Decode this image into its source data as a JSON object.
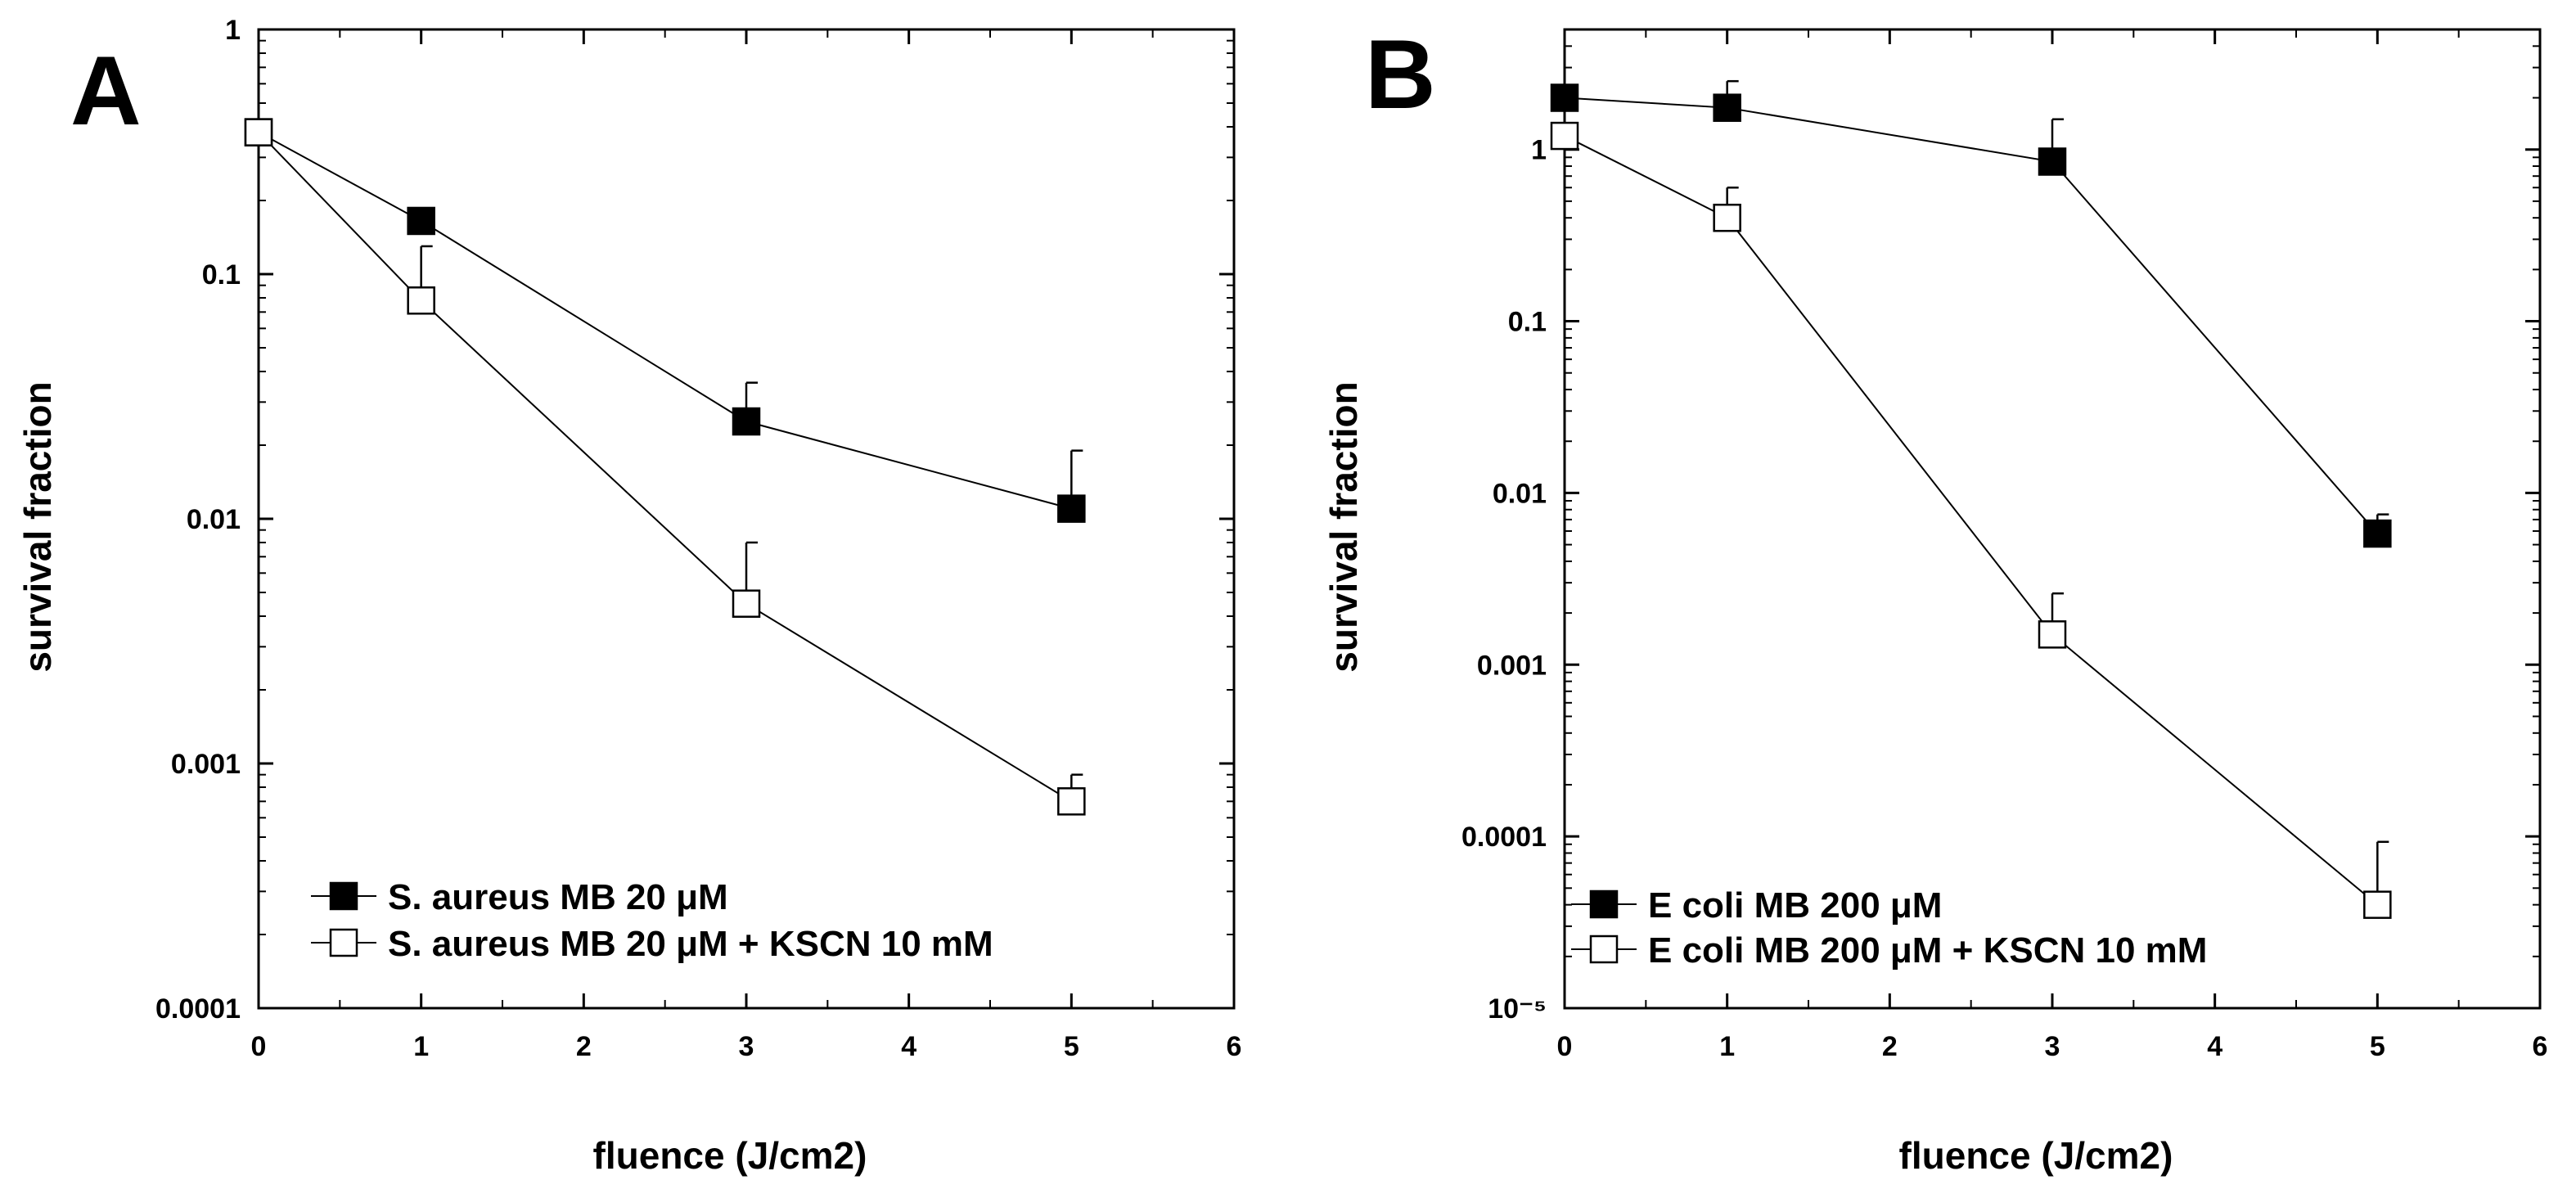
{
  "chart_data": [
    {
      "type": "line",
      "panel_label": "A",
      "xlabel": "fluence (J/cm2)",
      "ylabel": "survival fraction",
      "y_scale": "log",
      "xlim": [
        0,
        6
      ],
      "ylim": [
        0.0001,
        1
      ],
      "x_ticks": [
        0,
        1,
        2,
        3,
        4,
        5,
        6
      ],
      "x_tick_labels": [
        "0",
        "1",
        "2",
        "3",
        "4",
        "5",
        "6"
      ],
      "y_ticks": [
        0.0001,
        0.001,
        0.01,
        0.1,
        1
      ],
      "y_tick_labels": [
        "0.0001",
        "0.001",
        "0.01",
        "0.1",
        "1"
      ],
      "legend_position": "bottom-left",
      "series": [
        {
          "name": "S. aureus MB 20 μM",
          "marker": "filled-square",
          "x": [
            0,
            1,
            3,
            5
          ],
          "y": [
            0.38,
            0.165,
            0.025,
            0.011
          ],
          "error_upper": [
            0.38,
            0.165,
            0.036,
            0.019
          ]
        },
        {
          "name": "S. aureus MB 20 μM + KSCN 10 mM",
          "marker": "open-square",
          "x": [
            0,
            1,
            3,
            5
          ],
          "y": [
            0.38,
            0.078,
            0.0045,
            0.0007
          ],
          "error_upper": [
            0.38,
            0.13,
            0.008,
            0.0009
          ]
        }
      ]
    },
    {
      "type": "line",
      "panel_label": "B",
      "xlabel": "fluence (J/cm2)",
      "ylabel": "survival fraction",
      "y_scale": "log",
      "xlim": [
        0,
        6
      ],
      "ylim": [
        1e-05,
        5
      ],
      "x_ticks": [
        0,
        1,
        2,
        3,
        4,
        5,
        6
      ],
      "x_tick_labels": [
        "0",
        "1",
        "2",
        "3",
        "4",
        "5",
        "6"
      ],
      "y_ticks": [
        1e-05,
        0.0001,
        0.001,
        0.01,
        0.1,
        1
      ],
      "y_tick_labels": [
        "10⁻⁵",
        "0.0001",
        "0.001",
        "0.01",
        "0.1",
        "1"
      ],
      "legend_position": "bottom-left",
      "series": [
        {
          "name": "E coli MB 200 μM",
          "marker": "filled-square",
          "x": [
            0,
            1,
            3,
            5
          ],
          "y": [
            2.0,
            1.75,
            0.85,
            0.0058
          ],
          "error_upper": [
            2.0,
            2.5,
            1.5,
            0.0075
          ]
        },
        {
          "name": "E coli MB 200 μM + KSCN 10 mM",
          "marker": "open-square",
          "x": [
            0,
            1,
            3,
            5
          ],
          "y": [
            1.2,
            0.4,
            0.0015,
            4e-05
          ],
          "error_upper": [
            1.2,
            0.6,
            0.0026,
            9.3e-05
          ]
        }
      ]
    }
  ]
}
